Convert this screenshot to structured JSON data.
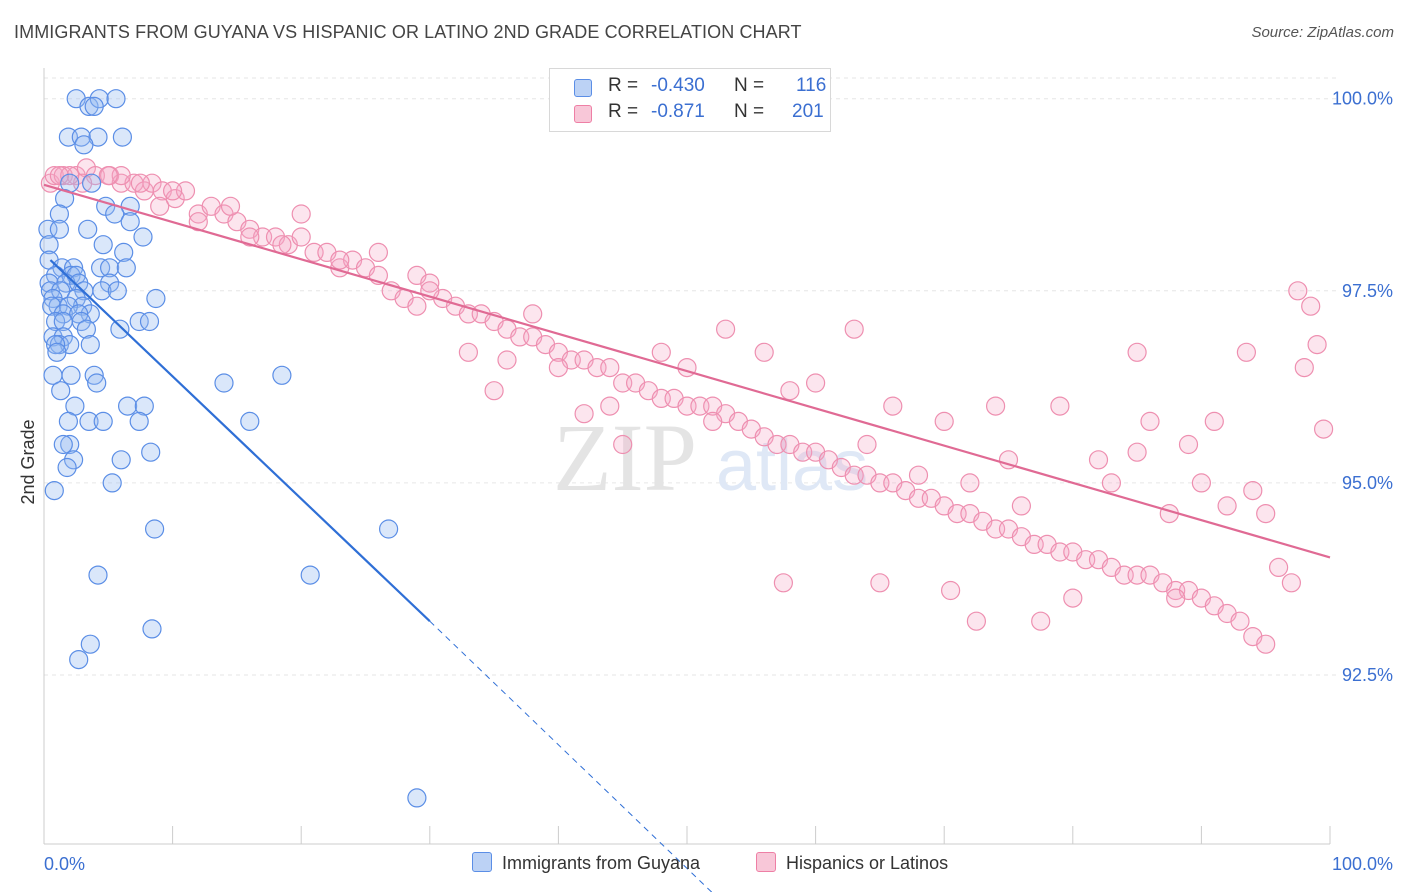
{
  "title": "IMMIGRANTS FROM GUYANA VS HISPANIC OR LATINO 2ND GRADE CORRELATION CHART",
  "source": "Source: ZipAtlas.com",
  "watermark": {
    "zip": "ZIP",
    "atlas": "atlas"
  },
  "legend": {
    "row1": {
      "r_label": "R =",
      "r_value": "-0.430",
      "n_label": "N =",
      "n_value": "116"
    },
    "row2": {
      "r_label": "R =",
      "r_value": "-0.871",
      "n_label": "N =",
      "n_value": "201"
    }
  },
  "colors": {
    "blue": "#5b8ee6",
    "blue_line": "#2f6fd6",
    "pink": "#ee7fa5",
    "pink_line": "#e06a94",
    "tick_text": "#3b6fd1"
  },
  "chart_data": {
    "type": "scatter",
    "xlabel": "",
    "ylabel": "2nd Grade",
    "x_tick_labels": {
      "left": "0.0%",
      "right": "100.0%"
    },
    "y_tick_labels": [
      "100.0%",
      "97.5%",
      "95.0%",
      "92.5%"
    ],
    "y_ticks": [
      100.0,
      97.5,
      95.0,
      92.5
    ],
    "xlim": [
      0,
      100
    ],
    "ylim": [
      90.3,
      100.4
    ],
    "legend_position": "bottom",
    "series": [
      {
        "name": "Immigrants from Guyana",
        "color": "#5b8ee6",
        "trend": {
          "x": [
            0.5,
            30.0
          ],
          "y": [
            97.9,
            93.2
          ],
          "dashed_to": {
            "x": 53.0,
            "y": 89.5
          }
        },
        "points": [
          [
            2.5,
            100.0
          ],
          [
            3.5,
            99.9
          ],
          [
            4.3,
            100.0
          ],
          [
            5.6,
            100.0
          ],
          [
            3.9,
            99.9
          ],
          [
            1.9,
            99.5
          ],
          [
            2.9,
            99.5
          ],
          [
            4.2,
            99.5
          ],
          [
            6.1,
            99.5
          ],
          [
            3.1,
            99.4
          ],
          [
            3.7,
            98.9
          ],
          [
            2.0,
            98.9
          ],
          [
            1.6,
            98.7
          ],
          [
            4.8,
            98.6
          ],
          [
            6.7,
            98.6
          ],
          [
            1.2,
            98.5
          ],
          [
            5.5,
            98.5
          ],
          [
            6.7,
            98.4
          ],
          [
            0.3,
            98.3
          ],
          [
            1.2,
            98.3
          ],
          [
            3.4,
            98.3
          ],
          [
            7.7,
            98.2
          ],
          [
            0.4,
            98.1
          ],
          [
            4.6,
            98.1
          ],
          [
            6.2,
            98.0
          ],
          [
            0.4,
            97.9
          ],
          [
            1.4,
            97.8
          ],
          [
            2.3,
            97.8
          ],
          [
            4.4,
            97.8
          ],
          [
            5.1,
            97.8
          ],
          [
            6.4,
            97.8
          ],
          [
            0.9,
            97.7
          ],
          [
            2.1,
            97.7
          ],
          [
            2.5,
            97.7
          ],
          [
            0.4,
            97.6
          ],
          [
            1.7,
            97.6
          ],
          [
            2.7,
            97.6
          ],
          [
            5.1,
            97.6
          ],
          [
            0.5,
            97.5
          ],
          [
            1.3,
            97.5
          ],
          [
            3.1,
            97.5
          ],
          [
            4.5,
            97.5
          ],
          [
            5.7,
            97.5
          ],
          [
            0.7,
            97.4
          ],
          [
            2.5,
            97.4
          ],
          [
            1.1,
            97.3
          ],
          [
            3.0,
            97.3
          ],
          [
            8.7,
            97.4
          ],
          [
            0.6,
            97.3
          ],
          [
            1.9,
            97.3
          ],
          [
            3.6,
            97.2
          ],
          [
            1.5,
            97.2
          ],
          [
            2.7,
            97.2
          ],
          [
            0.9,
            97.1
          ],
          [
            1.5,
            97.1
          ],
          [
            2.9,
            97.1
          ],
          [
            7.4,
            97.1
          ],
          [
            8.2,
            97.1
          ],
          [
            3.3,
            97.0
          ],
          [
            5.9,
            97.0
          ],
          [
            0.7,
            96.9
          ],
          [
            1.5,
            96.9
          ],
          [
            1.2,
            96.8
          ],
          [
            2.0,
            96.8
          ],
          [
            3.6,
            96.8
          ],
          [
            0.9,
            96.8
          ],
          [
            1.0,
            96.7
          ],
          [
            0.7,
            96.4
          ],
          [
            2.1,
            96.4
          ],
          [
            3.9,
            96.4
          ],
          [
            18.5,
            96.4
          ],
          [
            4.1,
            96.3
          ],
          [
            14.0,
            96.3
          ],
          [
            1.3,
            96.2
          ],
          [
            2.4,
            96.0
          ],
          [
            6.5,
            96.0
          ],
          [
            7.8,
            96.0
          ],
          [
            16.0,
            95.8
          ],
          [
            1.9,
            95.8
          ],
          [
            3.5,
            95.8
          ],
          [
            4.6,
            95.8
          ],
          [
            7.4,
            95.8
          ],
          [
            2.0,
            95.5
          ],
          [
            1.5,
            95.5
          ],
          [
            8.3,
            95.4
          ],
          [
            6.0,
            95.3
          ],
          [
            2.3,
            95.3
          ],
          [
            1.8,
            95.2
          ],
          [
            5.3,
            95.0
          ],
          [
            0.8,
            94.9
          ],
          [
            26.8,
            94.4
          ],
          [
            8.6,
            94.4
          ],
          [
            4.2,
            93.8
          ],
          [
            20.7,
            93.8
          ],
          [
            8.4,
            93.1
          ],
          [
            3.6,
            92.9
          ],
          [
            2.7,
            92.7
          ],
          [
            29.0,
            90.9
          ]
        ]
      },
      {
        "name": "Hispanics or Latinos",
        "color": "#ee7fa5",
        "trend": {
          "x": [
            0.0,
            100.0
          ],
          "y": [
            98.88,
            94.03
          ]
        },
        "points": [
          [
            0.5,
            98.9
          ],
          [
            0.8,
            99.0
          ],
          [
            1.5,
            99.0
          ],
          [
            2.5,
            99.0
          ],
          [
            3.3,
            99.1
          ],
          [
            4.0,
            99.0
          ],
          [
            5.1,
            99.0
          ],
          [
            6.0,
            98.9
          ],
          [
            7.0,
            98.9
          ],
          [
            7.8,
            98.8
          ],
          [
            8.4,
            98.9
          ],
          [
            9.2,
            98.8
          ],
          [
            10.2,
            98.7
          ],
          [
            11.0,
            98.8
          ],
          [
            12.0,
            98.5
          ],
          [
            13.0,
            98.6
          ],
          [
            14.0,
            98.5
          ],
          [
            15.0,
            98.4
          ],
          [
            16.0,
            98.3
          ],
          [
            17.0,
            98.2
          ],
          [
            18.0,
            98.2
          ],
          [
            19.0,
            98.1
          ],
          [
            20.0,
            98.2
          ],
          [
            21.0,
            98.0
          ],
          [
            22.0,
            98.0
          ],
          [
            23.0,
            97.8
          ],
          [
            24.0,
            97.9
          ],
          [
            25.0,
            97.8
          ],
          [
            26.0,
            97.7
          ],
          [
            27.0,
            97.5
          ],
          [
            28.0,
            97.4
          ],
          [
            29.0,
            97.7
          ],
          [
            30.0,
            97.6
          ],
          [
            31.0,
            97.4
          ],
          [
            32.0,
            97.3
          ],
          [
            33.0,
            97.2
          ],
          [
            34.0,
            97.2
          ],
          [
            35.0,
            97.1
          ],
          [
            36.0,
            97.0
          ],
          [
            37.0,
            96.9
          ],
          [
            38.0,
            96.9
          ],
          [
            39.0,
            96.8
          ],
          [
            40.0,
            96.7
          ],
          [
            41.0,
            96.6
          ],
          [
            42.0,
            96.6
          ],
          [
            43.0,
            96.5
          ],
          [
            44.0,
            96.5
          ],
          [
            45.0,
            96.3
          ],
          [
            46.0,
            96.3
          ],
          [
            47.0,
            96.2
          ],
          [
            48.0,
            96.1
          ],
          [
            49.0,
            96.1
          ],
          [
            50.0,
            96.0
          ],
          [
            51.0,
            96.0
          ],
          [
            52.0,
            96.0
          ],
          [
            53.0,
            95.9
          ],
          [
            54.0,
            95.8
          ],
          [
            55.0,
            95.7
          ],
          [
            56.0,
            95.6
          ],
          [
            57.0,
            95.5
          ],
          [
            58.0,
            95.5
          ],
          [
            59.0,
            95.4
          ],
          [
            60.0,
            95.4
          ],
          [
            61.0,
            95.3
          ],
          [
            62.0,
            95.2
          ],
          [
            63.0,
            95.1
          ],
          [
            64.0,
            95.1
          ],
          [
            65.0,
            95.0
          ],
          [
            66.0,
            95.0
          ],
          [
            67.0,
            94.9
          ],
          [
            68.0,
            94.8
          ],
          [
            69.0,
            94.8
          ],
          [
            70.0,
            94.7
          ],
          [
            71.0,
            94.6
          ],
          [
            72.0,
            94.6
          ],
          [
            73.0,
            94.5
          ],
          [
            74.0,
            94.4
          ],
          [
            75.0,
            94.4
          ],
          [
            76.0,
            94.3
          ],
          [
            77.0,
            94.2
          ],
          [
            78.0,
            94.2
          ],
          [
            79.0,
            94.1
          ],
          [
            80.0,
            94.1
          ],
          [
            81.0,
            94.0
          ],
          [
            82.0,
            94.0
          ],
          [
            83.0,
            93.9
          ],
          [
            84.0,
            93.8
          ],
          [
            85.0,
            93.8
          ],
          [
            86.0,
            93.8
          ],
          [
            87.0,
            93.7
          ],
          [
            88.0,
            93.6
          ],
          [
            89.0,
            93.6
          ],
          [
            90.0,
            93.5
          ],
          [
            91.0,
            93.4
          ],
          [
            92.0,
            93.3
          ],
          [
            93.0,
            93.2
          ],
          [
            94.0,
            93.0
          ],
          [
            95.0,
            92.9
          ],
          [
            96.0,
            93.9
          ],
          [
            97.0,
            93.7
          ],
          [
            98.0,
            96.5
          ],
          [
            98.5,
            97.3
          ],
          [
            99.0,
            96.8
          ],
          [
            99.5,
            95.7
          ],
          [
            97.5,
            97.5
          ],
          [
            93.5,
            96.7
          ],
          [
            85.0,
            96.7
          ],
          [
            74.0,
            96.0
          ],
          [
            63.0,
            97.0
          ],
          [
            56.0,
            96.7
          ],
          [
            50.0,
            96.5
          ],
          [
            38.0,
            97.2
          ],
          [
            30.0,
            97.5
          ],
          [
            26.0,
            98.0
          ],
          [
            20.0,
            98.5
          ],
          [
            16.0,
            98.2
          ],
          [
            12.0,
            98.4
          ],
          [
            9.0,
            98.6
          ],
          [
            6.0,
            99.0
          ],
          [
            3.0,
            98.9
          ],
          [
            57.5,
            93.7
          ],
          [
            65.0,
            93.7
          ],
          [
            70.5,
            93.6
          ],
          [
            72.5,
            93.2
          ],
          [
            80.0,
            93.5
          ],
          [
            88.0,
            93.5
          ],
          [
            77.5,
            93.2
          ],
          [
            87.5,
            94.6
          ],
          [
            75.0,
            95.3
          ],
          [
            68.0,
            95.1
          ],
          [
            45.0,
            95.5
          ],
          [
            35.0,
            96.2
          ],
          [
            40.0,
            96.5
          ],
          [
            53.0,
            97.0
          ],
          [
            48.0,
            96.7
          ],
          [
            60.0,
            96.3
          ],
          [
            66.0,
            96.0
          ],
          [
            70.0,
            95.8
          ],
          [
            79.0,
            96.0
          ],
          [
            85.0,
            95.4
          ],
          [
            90.0,
            95.0
          ],
          [
            95.0,
            94.6
          ],
          [
            83.0,
            95.0
          ],
          [
            86.0,
            95.8
          ],
          [
            91.0,
            95.8
          ],
          [
            94.0,
            94.9
          ],
          [
            92.0,
            94.7
          ],
          [
            89.0,
            95.5
          ],
          [
            82.0,
            95.3
          ],
          [
            76.0,
            94.7
          ],
          [
            72.0,
            95.0
          ],
          [
            64.0,
            95.5
          ],
          [
            58.0,
            96.2
          ],
          [
            52.0,
            95.8
          ],
          [
            44.0,
            96.0
          ],
          [
            42.0,
            95.9
          ],
          [
            36.0,
            96.6
          ],
          [
            33.0,
            96.7
          ],
          [
            29.0,
            97.3
          ],
          [
            23.0,
            97.9
          ],
          [
            18.5,
            98.1
          ],
          [
            14.5,
            98.6
          ],
          [
            10.0,
            98.8
          ],
          [
            7.5,
            98.9
          ],
          [
            5.0,
            99.0
          ],
          [
            2.0,
            99.0
          ],
          [
            1.2,
            99.0
          ]
        ]
      }
    ]
  },
  "bottom_legend": {
    "series1": "Immigrants from Guyana",
    "series2": "Hispanics or Latinos"
  }
}
